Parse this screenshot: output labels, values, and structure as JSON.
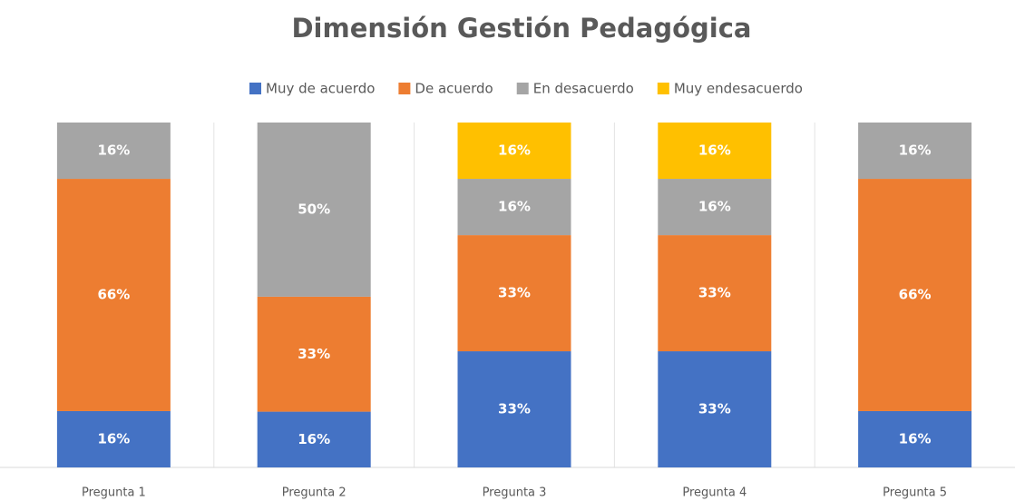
{
  "chart_data": {
    "type": "bar",
    "stacking": "percent",
    "title": "Dimensión Gestión Pedagógica",
    "categories": [
      "Pregunta 1",
      "Pregunta 2",
      "Pregunta 3",
      "Pregunta 4",
      "Pregunta 5"
    ],
    "series": [
      {
        "name": "Muy de acuerdo",
        "color": "#4472c4",
        "values": [
          16,
          16,
          33,
          33,
          16
        ],
        "value_labels": [
          "16%",
          "16%",
          "33%",
          "33%",
          "16%"
        ]
      },
      {
        "name": "De acuerdo",
        "color": "#ed7d31",
        "values": [
          66,
          33,
          33,
          33,
          66
        ],
        "value_labels": [
          "66%",
          "33%",
          "33%",
          "33%",
          "66%"
        ]
      },
      {
        "name": "En desacuerdo",
        "color": "#a5a5a5",
        "values": [
          16,
          50,
          16,
          16,
          16
        ],
        "value_labels": [
          "16%",
          "50%",
          "16%",
          "16%",
          "16%"
        ]
      },
      {
        "name": "Muy endesacuerdo",
        "color": "#ffc000",
        "values": [
          null,
          null,
          16,
          16,
          null
        ],
        "value_labels": [
          null,
          null,
          "16%",
          "16%",
          null
        ]
      }
    ],
    "legend": "top",
    "grid": true
  }
}
